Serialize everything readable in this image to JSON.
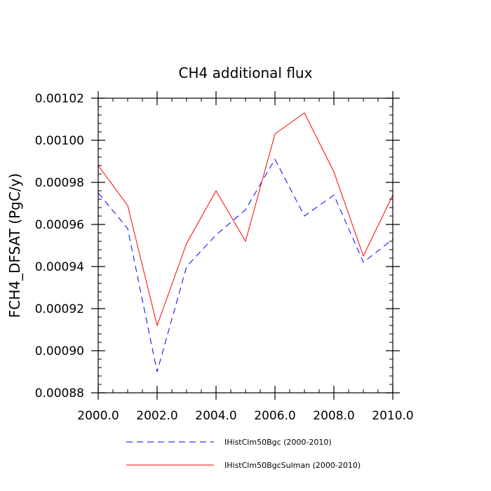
{
  "chart_data": {
    "type": "line",
    "title": "CH4 additional flux",
    "xlabel": "",
    "ylabel": "FCH4_DFSAT  (PgC/y)",
    "xlim": [
      2000,
      2010
    ],
    "ylim": [
      0.00088,
      0.00102
    ],
    "x_ticks": [
      2000,
      2002,
      2004,
      2006,
      2008,
      2010
    ],
    "x_tick_labels": [
      "2000.0",
      "2002.0",
      "2004.0",
      "2006.0",
      "2008.0",
      "2010.0"
    ],
    "y_ticks": [
      0.00088,
      0.0009,
      0.00092,
      0.00094,
      0.00096,
      0.00098,
      0.001,
      0.00102
    ],
    "y_tick_labels": [
      "0.00088",
      "0.00090",
      "0.00092",
      "0.00094",
      "0.00096",
      "0.00098",
      "0.00100",
      "0.00102"
    ],
    "x": [
      2000,
      2001,
      2002,
      2003,
      2004,
      2005,
      2006,
      2007,
      2008,
      2009,
      2010
    ],
    "series": [
      {
        "name": "IHistClm50Bgc (2000-2010)",
        "color": "#0000ff",
        "line_style": "dashed",
        "values": [
          0.000975,
          0.000958,
          0.00089,
          0.00094,
          0.000955,
          0.000967,
          0.000991,
          0.000964,
          0.000974,
          0.000942,
          0.000953
        ]
      },
      {
        "name": "IHistClm50BgcSulman (2000-2010)",
        "color": "#ff0000",
        "line_style": "solid",
        "values": [
          0.000988,
          0.000969,
          0.000912,
          0.000951,
          0.000976,
          0.000952,
          0.001003,
          0.001013,
          0.000985,
          0.000945,
          0.000974
        ]
      }
    ],
    "grid": false,
    "legend_position": "bottom"
  }
}
